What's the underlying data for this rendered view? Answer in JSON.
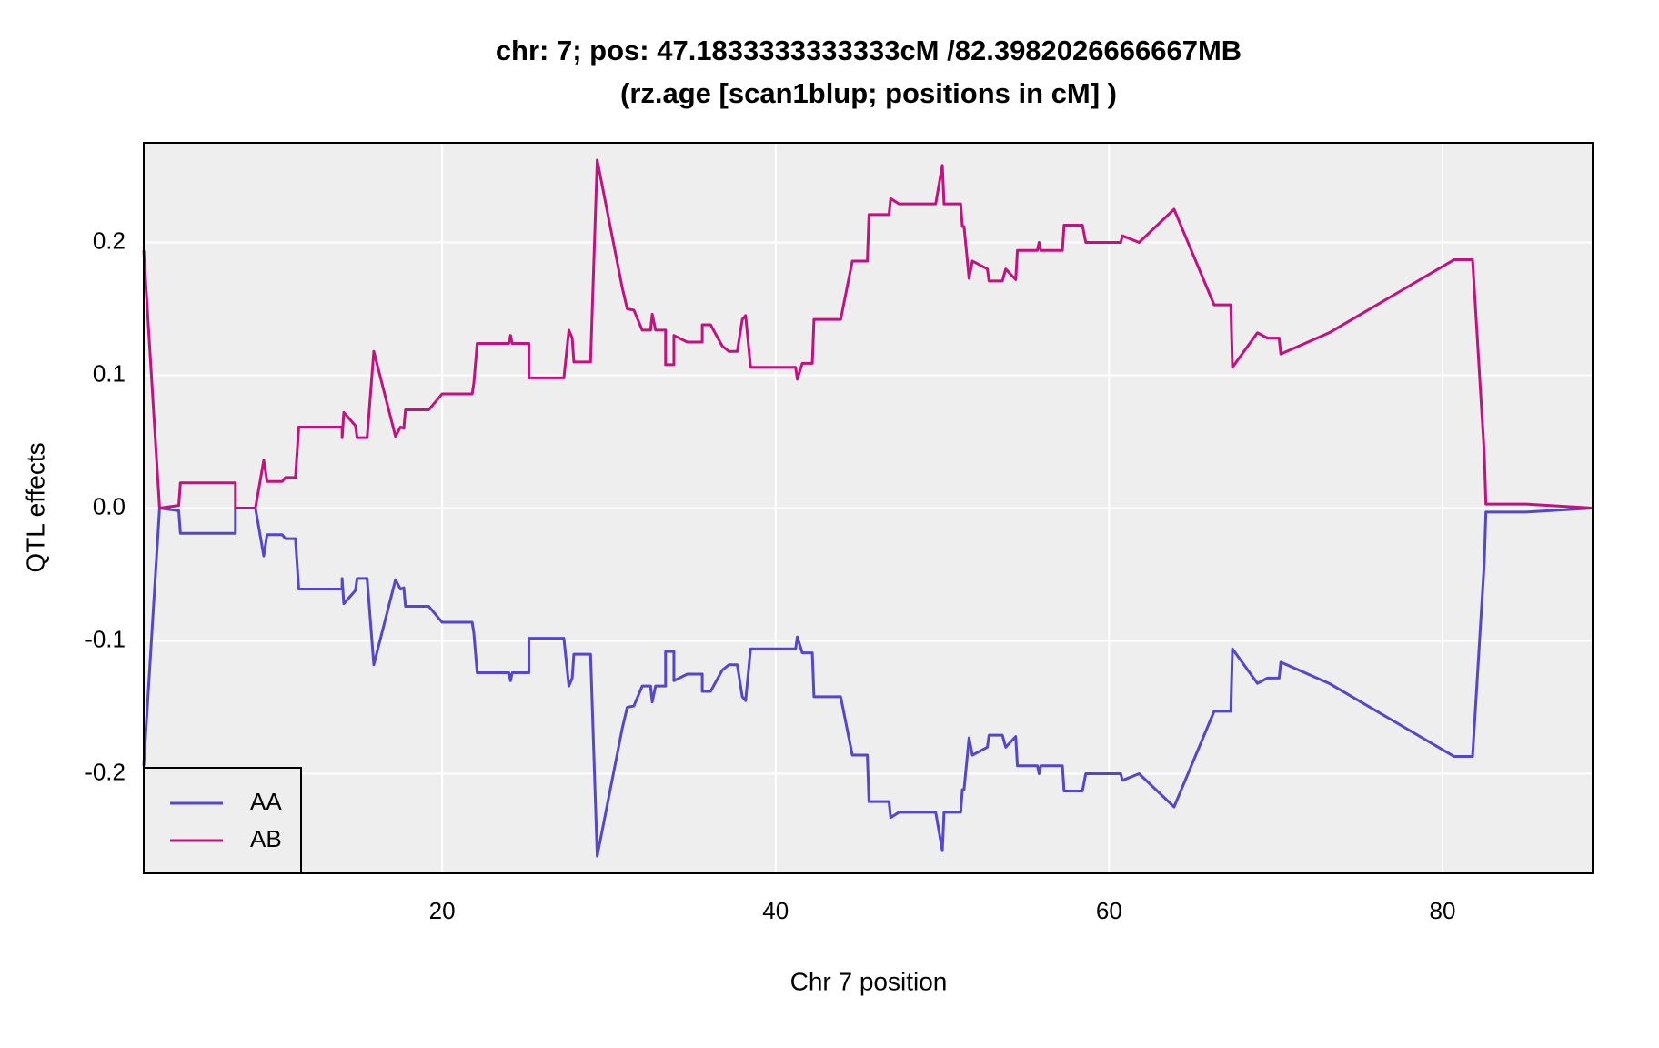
{
  "chart_data": {
    "type": "line",
    "title": "chr: 7; pos: 47.1833333333333cM /82.3982026666667MB",
    "subtitle": "(rz.age [scan1blup; positions in cM] )",
    "x_label": "Chr 7 position",
    "y_label": "QTL effects",
    "x": [
      2.1,
      3.05,
      4.2,
      4.3,
      7.6,
      7.6,
      8.8,
      9.3,
      9.5,
      10.4,
      10.6,
      11.2,
      11.4,
      14.0,
      14.0,
      14.1,
      14.8,
      14.9,
      15.5,
      15.9,
      17.2,
      17.5,
      17.7,
      17.8,
      19.2,
      20.0,
      21.8,
      21.9,
      22.1,
      24.0,
      24.1,
      24.2,
      25.2,
      25.2,
      27.3,
      27.6,
      27.8,
      27.9,
      28.9,
      29.3,
      30.8,
      31.1,
      31.5,
      32.0,
      32.5,
      32.6,
      32.8,
      33.4,
      33.4,
      33.9,
      33.9,
      34.7,
      35.6,
      35.6,
      36.1,
      36.8,
      37.2,
      37.7,
      38.0,
      38.2,
      38.5,
      41.2,
      41.3,
      41.6,
      42.2,
      42.3,
      43.9,
      44.6,
      45.5,
      45.6,
      46.8,
      46.9,
      47.4,
      49.6,
      50.0,
      50.1,
      51.1,
      51.2,
      51.3,
      51.6,
      51.8,
      52.7,
      52.8,
      53.6,
      53.8,
      54.4,
      54.5,
      55.7,
      55.8,
      55.9,
      57.2,
      57.3,
      58.4,
      58.6,
      60.7,
      60.8,
      61.8,
      63.9,
      66.3,
      67.3,
      67.4,
      68.9,
      69.5,
      70.2,
      70.3,
      73.2,
      80.7,
      81.8,
      82.5,
      82.6,
      85.0,
      89.0
    ],
    "series": [
      {
        "name": "AA",
        "color": "#5547c9",
        "values": [
          -0.194,
          0,
          -0.002,
          -0.019,
          -0.019,
          0,
          0,
          -0.036,
          -0.02,
          -0.02,
          -0.023,
          -0.023,
          -0.061,
          -0.061,
          -0.053,
          -0.072,
          -0.062,
          -0.053,
          -0.053,
          -0.118,
          -0.054,
          -0.061,
          -0.06,
          -0.074,
          -0.074,
          -0.086,
          -0.086,
          -0.094,
          -0.124,
          -0.124,
          -0.13,
          -0.124,
          -0.124,
          -0.098,
          -0.098,
          -0.134,
          -0.128,
          -0.11,
          -0.11,
          -0.262,
          -0.166,
          -0.15,
          -0.149,
          -0.134,
          -0.134,
          -0.146,
          -0.134,
          -0.134,
          -0.108,
          -0.108,
          -0.13,
          -0.125,
          -0.125,
          -0.138,
          -0.138,
          -0.122,
          -0.118,
          -0.118,
          -0.142,
          -0.145,
          -0.106,
          -0.106,
          -0.097,
          -0.109,
          -0.109,
          -0.142,
          -0.142,
          -0.186,
          -0.186,
          -0.221,
          -0.221,
          -0.233,
          -0.229,
          -0.229,
          -0.258,
          -0.229,
          -0.229,
          -0.212,
          -0.212,
          -0.173,
          -0.186,
          -0.18,
          -0.171,
          -0.171,
          -0.18,
          -0.172,
          -0.194,
          -0.194,
          -0.2,
          -0.194,
          -0.194,
          -0.213,
          -0.213,
          -0.2,
          -0.2,
          -0.205,
          -0.2,
          -0.225,
          -0.153,
          -0.153,
          -0.106,
          -0.132,
          -0.128,
          -0.128,
          -0.116,
          -0.132,
          -0.187,
          -0.187,
          -0.042,
          -0.003,
          -0.003,
          0
        ]
      },
      {
        "name": "AB",
        "color": "#c2127f",
        "values": [
          0.194,
          0,
          0.002,
          0.019,
          0.019,
          0,
          0,
          0.036,
          0.02,
          0.02,
          0.023,
          0.023,
          0.061,
          0.061,
          0.053,
          0.072,
          0.062,
          0.053,
          0.053,
          0.118,
          0.054,
          0.061,
          0.06,
          0.074,
          0.074,
          0.086,
          0.086,
          0.094,
          0.124,
          0.124,
          0.13,
          0.124,
          0.124,
          0.098,
          0.098,
          0.134,
          0.128,
          0.11,
          0.11,
          0.262,
          0.166,
          0.15,
          0.149,
          0.134,
          0.134,
          0.146,
          0.134,
          0.134,
          0.108,
          0.108,
          0.13,
          0.125,
          0.125,
          0.138,
          0.138,
          0.122,
          0.118,
          0.118,
          0.142,
          0.145,
          0.106,
          0.106,
          0.097,
          0.109,
          0.109,
          0.142,
          0.142,
          0.186,
          0.186,
          0.221,
          0.221,
          0.233,
          0.229,
          0.229,
          0.258,
          0.229,
          0.229,
          0.212,
          0.212,
          0.173,
          0.186,
          0.18,
          0.171,
          0.171,
          0.18,
          0.172,
          0.194,
          0.194,
          0.2,
          0.194,
          0.194,
          0.213,
          0.213,
          0.2,
          0.2,
          0.205,
          0.2,
          0.225,
          0.153,
          0.153,
          0.106,
          0.132,
          0.128,
          0.128,
          0.116,
          0.132,
          0.187,
          0.187,
          0.042,
          0.003,
          0.003,
          0
        ]
      }
    ],
    "xlim": [
      2.1,
      89.0
    ],
    "xticks": [
      20,
      40,
      60,
      80
    ],
    "ylim": [
      -0.275,
      0.275
    ],
    "yticks": [
      {
        "value": -0.2,
        "label": "-0.2"
      },
      {
        "value": -0.1,
        "label": "-0.1"
      },
      {
        "value": 0,
        "label": "0.0"
      },
      {
        "value": 0.1,
        "label": "0.1"
      },
      {
        "value": 0.2,
        "label": "0.2"
      }
    ],
    "grid": true,
    "legend": "bottom-left"
  }
}
